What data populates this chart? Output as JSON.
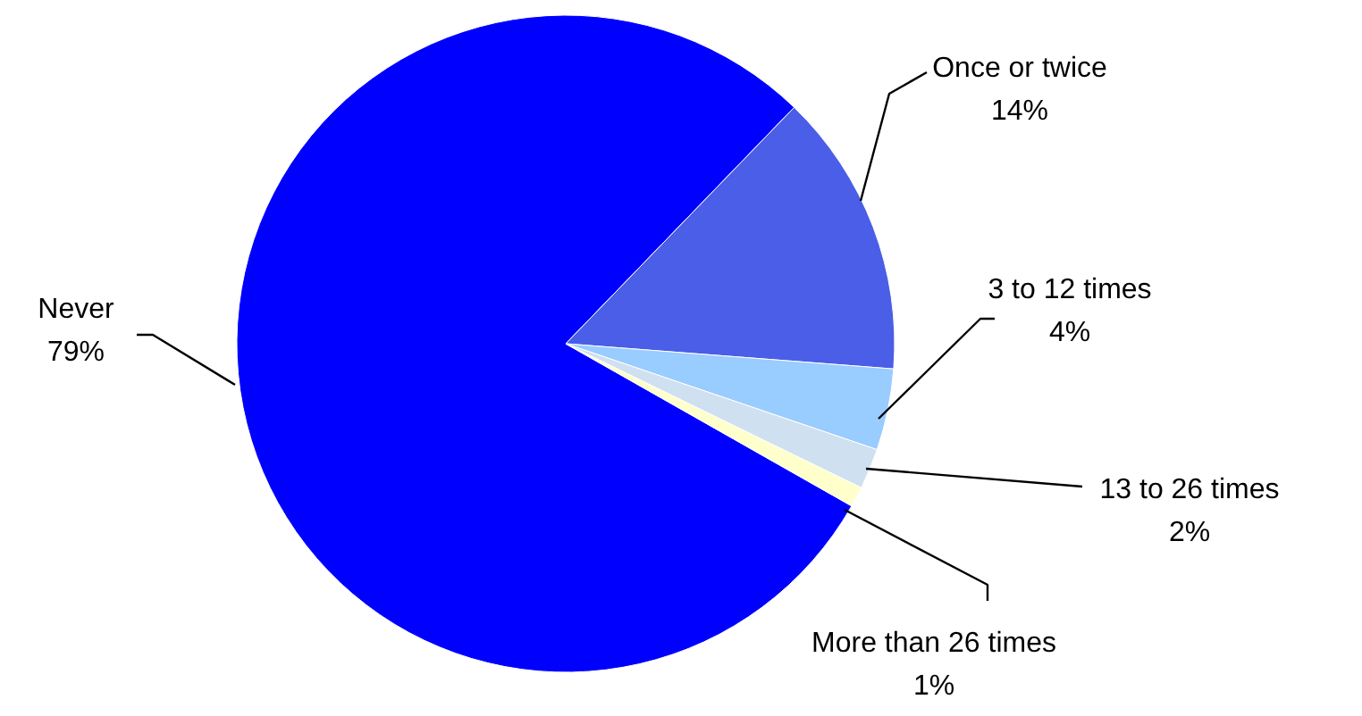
{
  "chart_data": {
    "type": "pie",
    "categories": [
      "Never",
      "Once or twice",
      "3 to 12 times",
      "13 to 26 times",
      "More than 26 times"
    ],
    "values": [
      79,
      14,
      4,
      2,
      1
    ],
    "colors": [
      "#0000ff",
      "#4a5ee8",
      "#99ccff",
      "#cfe0f0",
      "#ffffcc"
    ],
    "value_labels": [
      "79%",
      "14%",
      "4%",
      "2%",
      "1%"
    ]
  }
}
